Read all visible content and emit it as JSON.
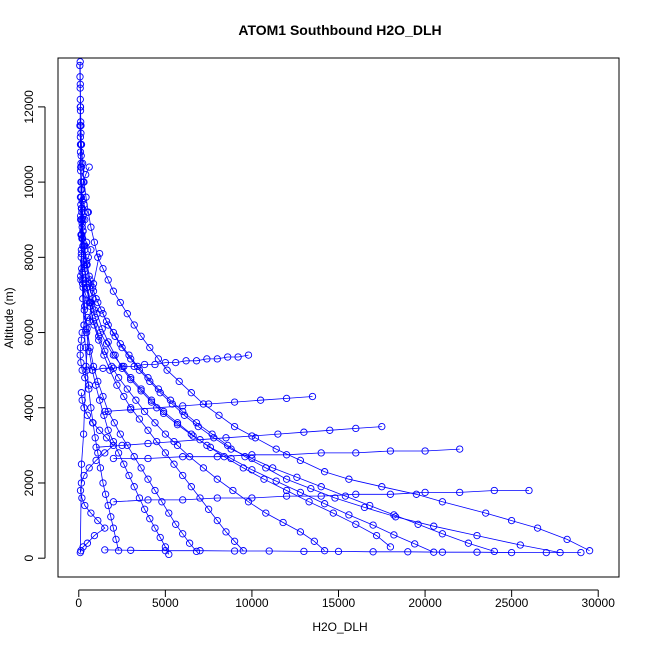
{
  "chart_data": {
    "type": "scatter",
    "title": "ATOM1 Southbound H2O_DLH",
    "xlabel": "H2O_DLH",
    "ylabel": "Altitude (m)",
    "xlim": [
      -1200,
      31200
    ],
    "ylim": [
      -500,
      13300
    ],
    "x_ticks": [
      0,
      5000,
      10000,
      15000,
      20000,
      25000,
      30000
    ],
    "y_ticks": [
      0,
      2000,
      4000,
      6000,
      8000,
      10000,
      12000
    ],
    "y_tick_labels_rotated": true,
    "marker": "open-circle",
    "connected_with_lines": true,
    "color": "#0000ff",
    "grid": false,
    "legend": "none",
    "series": [
      {
        "x": [
          29500,
          28200,
          26500,
          25000,
          23500,
          21000,
          19500,
          17500,
          15600,
          14200,
          12800,
          11400,
          10200,
          9000,
          8100,
          7200,
          6500,
          5800,
          5100,
          4600,
          4100,
          3600,
          3200,
          2800,
          2400,
          2000,
          1700,
          1400,
          1100,
          900,
          700,
          550,
          420,
          300,
          220,
          160,
          120,
          100,
          90,
          80
        ],
        "y": [
          200,
          500,
          800,
          1000,
          1200,
          1500,
          1700,
          1900,
          2100,
          2300,
          2600,
          2900,
          3200,
          3500,
          3800,
          4100,
          4400,
          4700,
          5000,
          5300,
          5600,
          5900,
          6200,
          6500,
          6800,
          7100,
          7400,
          7700,
          8000,
          8400,
          8800,
          9200,
          9600,
          10000,
          10500,
          11000,
          11500,
          12000,
          12600,
          13200
        ]
      },
      {
        "x": [
          27800,
          25500,
          23000,
          20500,
          18300,
          16500,
          14800,
          13400,
          12000,
          10800,
          9600,
          8600,
          7700,
          6800,
          6000,
          5300,
          4600,
          4000,
          3400,
          2900,
          2400,
          2000,
          1600,
          1300,
          1000,
          800,
          600,
          450,
          330,
          240,
          180,
          130,
          110,
          95
        ],
        "y": [
          150,
          350,
          600,
          850,
          1100,
          1350,
          1600,
          1850,
          2100,
          2400,
          2700,
          3000,
          3300,
          3600,
          3900,
          4200,
          4500,
          4800,
          5100,
          5400,
          5700,
          6000,
          6300,
          6600,
          6900,
          7200,
          7500,
          7900,
          8300,
          8700,
          9200,
          9800,
          10400,
          11200
        ]
      },
      {
        "x": [
          24000,
          22500,
          21000,
          19600,
          18200,
          16800,
          15400,
          14000,
          12600,
          11200,
          10000,
          8800,
          7800,
          6900,
          6100,
          5400,
          4700,
          4100,
          3500,
          3000,
          2500,
          2100,
          1700,
          1400,
          1100,
          850,
          650,
          480,
          350,
          250,
          170,
          120,
          100
        ],
        "y": [
          180,
          400,
          650,
          900,
          1150,
          1400,
          1650,
          1900,
          2150,
          2400,
          2650,
          2900,
          3200,
          3500,
          3800,
          4100,
          4400,
          4700,
          5000,
          5300,
          5600,
          5900,
          6200,
          6500,
          6800,
          7100,
          7400,
          7800,
          8200,
          8700,
          9300,
          10000,
          10800
        ]
      },
      {
        "x": [
          20500,
          19400,
          18200,
          17000,
          15600,
          14200,
          12800,
          11400,
          10000,
          8800,
          7600,
          6600,
          5700,
          4900,
          4200,
          3600,
          3000,
          2500,
          2100,
          1700,
          1350,
          1050,
          800,
          600,
          430,
          300,
          200,
          140,
          110
        ],
        "y": [
          160,
          380,
          620,
          880,
          1150,
          1450,
          1750,
          2050,
          2350,
          2650,
          2950,
          3250,
          3550,
          3850,
          4150,
          4450,
          4750,
          5050,
          5400,
          5750,
          6100,
          6500,
          6900,
          7300,
          7800,
          8300,
          8900,
          9600,
          10300
        ]
      },
      {
        "x": [
          18000,
          17200,
          16000,
          14700,
          13300,
          12000,
          10700,
          9500,
          8400,
          7400,
          6500,
          5700,
          4900,
          4200,
          3600,
          3000,
          2500,
          2000,
          1600,
          1250,
          950,
          700,
          500,
          350,
          240,
          160,
          120
        ],
        "y": [
          300,
          600,
          900,
          1200,
          1500,
          1800,
          2100,
          2400,
          2700,
          3000,
          3300,
          3600,
          3900,
          4200,
          4500,
          4800,
          5100,
          5400,
          5700,
          6000,
          6400,
          6800,
          7200,
          7700,
          8300,
          9000,
          9800
        ]
      },
      {
        "x": [
          14200,
          13600,
          12800,
          11800,
          10800,
          9800,
          8900,
          8000,
          7200,
          6400,
          5700,
          5000,
          4400,
          3800,
          3300,
          2800,
          2300,
          1900,
          1500,
          1150,
          850,
          600,
          420,
          280,
          180,
          120
        ],
        "y": [
          200,
          450,
          700,
          950,
          1200,
          1500,
          1800,
          2100,
          2400,
          2700,
          3000,
          3300,
          3600,
          3900,
          4200,
          4500,
          4800,
          5100,
          5500,
          5900,
          6300,
          6800,
          7300,
          7900,
          8600,
          9400
        ]
      },
      {
        "x": [
          9500,
          9000,
          8500,
          8000,
          7500,
          7000,
          6500,
          6000,
          5500,
          5000,
          4500,
          4000,
          3500,
          3000,
          2600,
          2200,
          1800,
          1450,
          1150,
          880,
          650,
          460,
          320,
          220,
          150
        ],
        "y": [
          200,
          450,
          700,
          1000,
          1300,
          1600,
          1900,
          2200,
          2500,
          2800,
          3100,
          3400,
          3700,
          4000,
          4300,
          4600,
          5000,
          5400,
          5800,
          6200,
          6700,
          7200,
          7800,
          8500,
          9300
        ]
      },
      {
        "x": [
          6800,
          6400,
          6000,
          5600,
          5200,
          4800,
          4400,
          4000,
          3600,
          3200,
          2800,
          2400,
          2050,
          1700,
          1400,
          1100,
          850,
          650,
          480,
          340,
          230,
          150,
          110
        ],
        "y": [
          180,
          400,
          650,
          900,
          1200,
          1500,
          1800,
          2100,
          2400,
          2700,
          3000,
          3300,
          3600,
          3900,
          4300,
          4700,
          5100,
          5600,
          6100,
          6700,
          7400,
          8200,
          9100
        ]
      },
      {
        "x": [
          5200,
          5000,
          4700,
          4400,
          4100,
          3800,
          3500,
          3200,
          2900,
          2600,
          2300,
          2000,
          1700,
          1450,
          1200,
          980,
          780,
          600,
          450,
          320,
          220,
          150,
          110
        ],
        "y": [
          100,
          300,
          550,
          800,
          1050,
          1300,
          1600,
          1900,
          2200,
          2500,
          2800,
          3100,
          3400,
          3800,
          4200,
          4600,
          5000,
          5500,
          6000,
          6600,
          7300,
          8100,
          9000
        ]
      },
      {
        "x": [
          2300,
          2150,
          2000,
          1850,
          1700,
          1550,
          1400,
          1250,
          1100,
          950,
          820,
          700,
          580,
          470,
          380,
          300,
          230,
          170,
          130,
          100
        ],
        "y": [
          200,
          500,
          800,
          1100,
          1400,
          1700,
          2000,
          2400,
          2800,
          3200,
          3600,
          4000,
          4500,
          5000,
          5600,
          6200,
          6900,
          7700,
          8600,
          9600
        ]
      },
      {
        "x": [
          29000,
          27000,
          25000,
          23000,
          21000,
          19000,
          17000,
          15000,
          13000,
          11000,
          9000,
          7000,
          5000,
          3000,
          1500
        ],
        "y": [
          150,
          150,
          150,
          160,
          160,
          170,
          170,
          180,
          180,
          190,
          190,
          200,
          200,
          210,
          220
        ]
      },
      {
        "x": [
          26000,
          24000,
          22000,
          20000,
          18000,
          16000,
          14000,
          12000,
          10000,
          8000,
          6000,
          4000,
          2000
        ],
        "y": [
          1800,
          1800,
          1750,
          1750,
          1700,
          1700,
          1650,
          1650,
          1600,
          1600,
          1550,
          1550,
          1500
        ]
      },
      {
        "x": [
          22000,
          20000,
          18000,
          16000,
          14000,
          12000,
          10000,
          8000,
          6000,
          4000,
          2000
        ],
        "y": [
          2900,
          2850,
          2850,
          2800,
          2800,
          2750,
          2750,
          2700,
          2700,
          2650,
          2650
        ]
      },
      {
        "x": [
          17500,
          16000,
          14500,
          13000,
          11500,
          10000,
          8500,
          7000,
          5500,
          4000,
          2500,
          1000
        ],
        "y": [
          3500,
          3450,
          3400,
          3350,
          3300,
          3250,
          3200,
          3150,
          3100,
          3050,
          3000,
          2950
        ]
      },
      {
        "x": [
          13500,
          12000,
          10500,
          9000,
          7500,
          6000,
          4500,
          3000,
          1500
        ],
        "y": [
          4300,
          4250,
          4200,
          4150,
          4100,
          4050,
          4000,
          3950,
          3900
        ]
      },
      {
        "x": [
          9800,
          9200,
          8600,
          8000,
          7400,
          6800,
          6200,
          5600,
          5000,
          4400,
          3800,
          3200,
          2600,
          2000,
          1400,
          800
        ],
        "y": [
          5400,
          5350,
          5350,
          5300,
          5300,
          5250,
          5250,
          5200,
          5200,
          5150,
          5150,
          5100,
          5100,
          5050,
          5050,
          5000
        ]
      },
      {
        "x": [
          600,
          400,
          250,
          180,
          140,
          300,
          500,
          350,
          200,
          150,
          450,
          700,
          550,
          300,
          200,
          120,
          250,
          400,
          650,
          900,
          500,
          300,
          200,
          150,
          100,
          80,
          120,
          200,
          350,
          600
        ],
        "y": [
          10400,
          10200,
          10000,
          9800,
          9600,
          9400,
          9200,
          9000,
          8800,
          8600,
          8400,
          8200,
          8000,
          7800,
          7600,
          7400,
          7200,
          7000,
          6800,
          6600,
          6400,
          6200,
          6000,
          5800,
          5600,
          5400,
          5200,
          5000,
          4800,
          4600
        ]
      },
      {
        "x": [
          150,
          200,
          300,
          500,
          800,
          1200,
          1600,
          2000,
          1500,
          1000,
          600,
          300,
          150,
          100,
          180,
          350,
          700,
          1100,
          1500,
          900,
          500,
          250,
          120,
          90,
          160,
          280,
          420,
          600,
          850,
          1200
        ],
        "y": [
          4400,
          4200,
          4000,
          3800,
          3600,
          3400,
          3200,
          3000,
          2800,
          2600,
          2400,
          2200,
          2000,
          1800,
          1600,
          1400,
          1200,
          1000,
          800,
          600,
          400,
          300,
          200,
          150,
          2500,
          3300,
          5100,
          6300,
          7300,
          8100
        ]
      },
      {
        "x": [
          60,
          70,
          80,
          90,
          100,
          110,
          120,
          130,
          140,
          150,
          90,
          70,
          100,
          130,
          160,
          200,
          240,
          180,
          140,
          110
        ],
        "y": [
          13100,
          12800,
          12500,
          12200,
          11900,
          11600,
          11300,
          11000,
          10700,
          10400,
          12000,
          11500,
          11000,
          10500,
          10000,
          9500,
          9000,
          8500,
          8000,
          7500
        ]
      }
    ]
  }
}
